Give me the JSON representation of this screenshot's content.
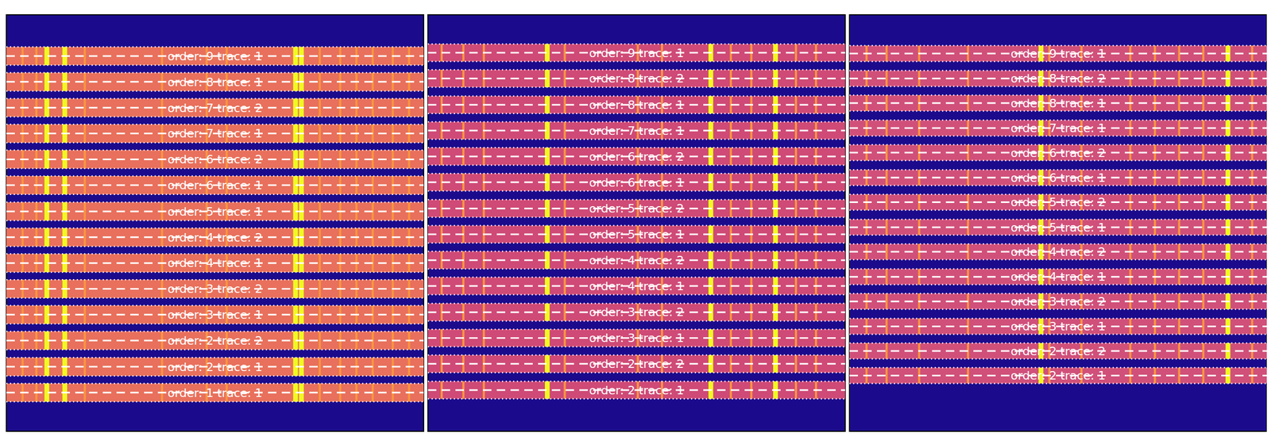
{
  "chart_data": [
    {
      "type": "image",
      "tick_labels": false,
      "xlim": [
        0,
        1000
      ],
      "ylim": [
        0,
        1000
      ],
      "color": "#e8705c",
      "lines": [
        39,
        72,
        97,
        140,
        188,
        373,
        480,
        528,
        693,
        707,
        751,
        800,
        839,
        878,
        926,
        965
      ],
      "strong_lines": [
        97,
        140,
        693,
        707
      ],
      "traces": [
        {
          "label": "order: 9 trace: 1",
          "center": 901,
          "lower": 879,
          "upper": 923
        },
        {
          "label": "order: 8 trace: 1",
          "center": 839,
          "lower": 817,
          "upper": 861
        },
        {
          "label": "order: 7 trace: 2",
          "center": 777,
          "lower": 755,
          "upper": 799
        },
        {
          "label": "order: 7 trace: 1",
          "center": 715,
          "lower": 693,
          "upper": 737
        },
        {
          "label": "order: 6 trace: 2",
          "center": 653,
          "lower": 631,
          "upper": 675
        },
        {
          "label": "order: 6 trace: 1",
          "center": 591,
          "lower": 569,
          "upper": 613
        },
        {
          "label": "order: 5 trace: 1",
          "center": 528,
          "lower": 506,
          "upper": 550
        },
        {
          "label": "order: 4 trace: 2",
          "center": 466,
          "lower": 444,
          "upper": 488
        },
        {
          "label": "order: 4 trace: 1",
          "center": 404,
          "lower": 382,
          "upper": 426
        },
        {
          "label": "order: 3 trace: 2",
          "center": 342,
          "lower": 320,
          "upper": 364
        },
        {
          "label": "order: 3 trace: 1",
          "center": 280,
          "lower": 258,
          "upper": 302
        },
        {
          "label": "order: 2 trace: 2",
          "center": 218,
          "lower": 196,
          "upper": 240
        },
        {
          "label": "order: 2 trace: 1",
          "center": 155,
          "lower": 133,
          "upper": 177
        },
        {
          "label": "order: 1 trace: 1",
          "center": 93,
          "lower": 71,
          "upper": 115
        }
      ]
    },
    {
      "type": "image",
      "tick_labels": false,
      "xlim": [
        0,
        1000
      ],
      "ylim": [
        0,
        1000
      ],
      "color": "#cf4a76",
      "lines": [
        33,
        85,
        134,
        286,
        328,
        503,
        561,
        678,
        726,
        775,
        833,
        882,
        930
      ],
      "strong_lines": [
        286,
        678,
        833
      ],
      "traces": [
        {
          "label": "order: 9 trace: 1",
          "center": 909,
          "lower": 888,
          "upper": 930
        },
        {
          "label": "order: 8 trace: 2",
          "center": 847,
          "lower": 826,
          "upper": 868
        },
        {
          "label": "order: 8 trace: 1",
          "center": 784,
          "lower": 763,
          "upper": 805
        },
        {
          "label": "order: 7 trace: 1",
          "center": 722,
          "lower": 701,
          "upper": 743
        },
        {
          "label": "order: 6 trace: 2",
          "center": 660,
          "lower": 639,
          "upper": 681
        },
        {
          "label": "order: 6 trace: 1",
          "center": 598,
          "lower": 577,
          "upper": 619
        },
        {
          "label": "order: 5 trace: 2",
          "center": 535,
          "lower": 514,
          "upper": 556
        },
        {
          "label": "order: 5 trace: 1",
          "center": 473,
          "lower": 452,
          "upper": 494
        },
        {
          "label": "order: 4 trace: 2",
          "center": 411,
          "lower": 390,
          "upper": 432
        },
        {
          "label": "order: 4 trace: 1",
          "center": 349,
          "lower": 328,
          "upper": 370
        },
        {
          "label": "order: 3 trace: 2",
          "center": 286,
          "lower": 265,
          "upper": 307
        },
        {
          "label": "order: 3 trace: 1",
          "center": 224,
          "lower": 203,
          "upper": 245
        },
        {
          "label": "order: 2 trace: 2",
          "center": 162,
          "lower": 141,
          "upper": 183
        },
        {
          "label": "order: 2 trace: 1",
          "center": 99,
          "lower": 78,
          "upper": 120
        }
      ]
    },
    {
      "type": "image",
      "tick_labels": false,
      "xlim": [
        0,
        1000
      ],
      "ylim": [
        0,
        1000
      ],
      "color": "#d0507a",
      "lines": [
        41,
        89,
        167,
        284,
        459,
        479,
        556,
        673,
        732,
        790,
        848,
        907,
        965
      ],
      "strong_lines": [
        459,
        907
      ],
      "traces": [
        {
          "label": "order: 9 trace: 1",
          "center": 907,
          "lower": 888,
          "upper": 926
        },
        {
          "label": "order: 8 trace: 2",
          "center": 847,
          "lower": 828,
          "upper": 866
        },
        {
          "label": "order: 8 trace: 1",
          "center": 788,
          "lower": 769,
          "upper": 807
        },
        {
          "label": "order: 7 trace: 1",
          "center": 728,
          "lower": 709,
          "upper": 747
        },
        {
          "label": "order: 6 trace: 2",
          "center": 669,
          "lower": 650,
          "upper": 688
        },
        {
          "label": "order: 6 trace: 1",
          "center": 609,
          "lower": 590,
          "upper": 628
        },
        {
          "label": "order: 5 trace: 2",
          "center": 550,
          "lower": 531,
          "upper": 569
        },
        {
          "label": "order: 5 trace: 1",
          "center": 490,
          "lower": 471,
          "upper": 509
        },
        {
          "label": "order: 4 trace: 2",
          "center": 431,
          "lower": 412,
          "upper": 450
        },
        {
          "label": "order: 4 trace: 1",
          "center": 371,
          "lower": 352,
          "upper": 390
        },
        {
          "label": "order: 3 trace: 2",
          "center": 312,
          "lower": 293,
          "upper": 331
        },
        {
          "label": "order: 3 trace: 1",
          "center": 252,
          "lower": 233,
          "upper": 271
        },
        {
          "label": "order: 2 trace: 2",
          "center": 193,
          "lower": 174,
          "upper": 212
        },
        {
          "label": "order: 2 trace: 1",
          "center": 134,
          "lower": 115,
          "upper": 153
        }
      ]
    }
  ]
}
